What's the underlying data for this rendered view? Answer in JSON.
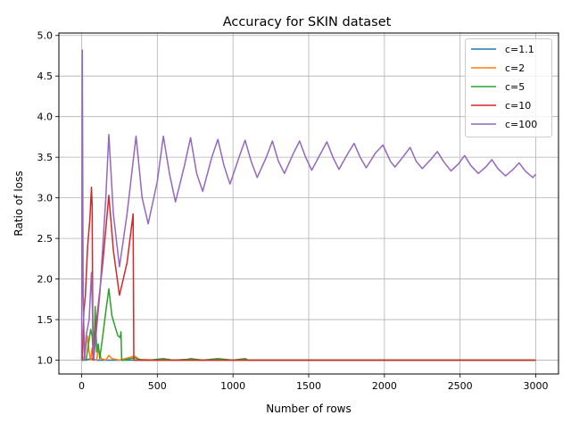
{
  "chart_data": {
    "type": "line",
    "title": "Accuracy for SKIN dataset",
    "xlabel": "Number of rows",
    "ylabel": "Ratio of loss",
    "xlim": [
      -150,
      3150
    ],
    "ylim": [
      0.83,
      5.03
    ],
    "xticks": [
      0,
      500,
      1000,
      1500,
      2000,
      2500,
      3000
    ],
    "yticks": [
      1.0,
      1.5,
      2.0,
      2.5,
      3.0,
      3.5,
      4.0,
      4.5,
      5.0
    ],
    "xtick_labels": [
      "0",
      "500",
      "1000",
      "1500",
      "2000",
      "2500",
      "3000"
    ],
    "ytick_labels": [
      "1.0",
      "1.5",
      "2.0",
      "2.5",
      "3.0",
      "3.5",
      "4.0",
      "4.5",
      "5.0"
    ],
    "grid": true,
    "legend_position": "top-right",
    "series": [
      {
        "name": "c=1.1",
        "color": "#1f77b4",
        "points": [
          [
            0,
            1.0
          ],
          [
            10,
            1.0
          ],
          [
            20,
            1.01
          ],
          [
            30,
            1.0
          ],
          [
            60,
            1.02
          ],
          [
            100,
            1.0
          ],
          [
            200,
            1.0
          ],
          [
            500,
            1.0
          ],
          [
            1000,
            1.0
          ],
          [
            1500,
            1.0
          ],
          [
            2000,
            1.0
          ],
          [
            2500,
            1.0
          ],
          [
            3000,
            1.0
          ]
        ]
      },
      {
        "name": "c=2",
        "color": "#ff7f0e",
        "points": [
          [
            0,
            1.0
          ],
          [
            20,
            1.05
          ],
          [
            40,
            1.3
          ],
          [
            50,
            1.1
          ],
          [
            60,
            1.0
          ],
          [
            70,
            1.15
          ],
          [
            80,
            1.0
          ],
          [
            100,
            1.0
          ],
          [
            110,
            1.15
          ],
          [
            130,
            1.02
          ],
          [
            160,
            1.0
          ],
          [
            180,
            1.06
          ],
          [
            200,
            1.02
          ],
          [
            250,
            1.0
          ],
          [
            350,
            1.05
          ],
          [
            380,
            1.01
          ],
          [
            500,
            1.0
          ],
          [
            700,
            1.0
          ],
          [
            1000,
            1.0
          ],
          [
            1500,
            1.0
          ],
          [
            2000,
            1.0
          ],
          [
            2500,
            1.0
          ],
          [
            3000,
            1.0
          ]
        ]
      },
      {
        "name": "c=5",
        "color": "#2ca02c",
        "points": [
          [
            0,
            1.0
          ],
          [
            30,
            1.0
          ],
          [
            50,
            1.25
          ],
          [
            60,
            1.38
          ],
          [
            70,
            1.3
          ],
          [
            80,
            1.05
          ],
          [
            90,
            1.66
          ],
          [
            100,
            1.1
          ],
          [
            110,
            1.2
          ],
          [
            120,
            1.02
          ],
          [
            140,
            1.3
          ],
          [
            160,
            1.6
          ],
          [
            180,
            1.88
          ],
          [
            200,
            1.55
          ],
          [
            220,
            1.42
          ],
          [
            240,
            1.3
          ],
          [
            255,
            1.28
          ],
          [
            260,
            1.35
          ],
          [
            265,
            1.0
          ],
          [
            280,
            1.0
          ],
          [
            300,
            1.01
          ],
          [
            350,
            1.03
          ],
          [
            400,
            1.0
          ],
          [
            450,
            1.0
          ],
          [
            540,
            1.02
          ],
          [
            600,
            1.0
          ],
          [
            700,
            1.01
          ],
          [
            720,
            1.02
          ],
          [
            800,
            1.0
          ],
          [
            900,
            1.02
          ],
          [
            1000,
            1.0
          ],
          [
            1080,
            1.02
          ],
          [
            1100,
            1.0
          ],
          [
            1500,
            1.0
          ],
          [
            2000,
            1.0
          ],
          [
            2500,
            1.0
          ],
          [
            3000,
            1.0
          ]
        ]
      },
      {
        "name": "c=10",
        "color": "#d62728",
        "points": [
          [
            0,
            1.0
          ],
          [
            5,
            1.01
          ],
          [
            15,
            1.6
          ],
          [
            25,
            1.8
          ],
          [
            40,
            2.4
          ],
          [
            55,
            2.75
          ],
          [
            65,
            3.13
          ],
          [
            70,
            2.9
          ],
          [
            75,
            1.0
          ],
          [
            80,
            1.05
          ],
          [
            100,
            1.5
          ],
          [
            140,
            2.2
          ],
          [
            180,
            3.03
          ],
          [
            210,
            2.35
          ],
          [
            250,
            1.8
          ],
          [
            300,
            2.2
          ],
          [
            340,
            2.8
          ],
          [
            345,
            1.0
          ],
          [
            400,
            1.0
          ],
          [
            500,
            1.0
          ],
          [
            1000,
            1.0
          ],
          [
            1500,
            1.0
          ],
          [
            2000,
            1.0
          ],
          [
            2500,
            1.0
          ],
          [
            3000,
            1.0
          ]
        ]
      },
      {
        "name": "c=100",
        "color": "#9467bd",
        "points": [
          [
            0,
            1.0
          ],
          [
            5,
            4.82
          ],
          [
            10,
            1.8
          ],
          [
            20,
            1.0
          ],
          [
            30,
            1.3
          ],
          [
            50,
            1.5
          ],
          [
            65,
            2.08
          ],
          [
            80,
            1.0
          ],
          [
            90,
            1.2
          ],
          [
            120,
            1.8
          ],
          [
            160,
            3.0
          ],
          [
            180,
            3.78
          ],
          [
            210,
            2.8
          ],
          [
            250,
            2.15
          ],
          [
            300,
            2.8
          ],
          [
            360,
            3.76
          ],
          [
            400,
            3.0
          ],
          [
            440,
            2.68
          ],
          [
            500,
            3.2
          ],
          [
            540,
            3.76
          ],
          [
            580,
            3.3
          ],
          [
            620,
            2.95
          ],
          [
            680,
            3.4
          ],
          [
            720,
            3.74
          ],
          [
            760,
            3.3
          ],
          [
            800,
            3.08
          ],
          [
            860,
            3.5
          ],
          [
            900,
            3.72
          ],
          [
            940,
            3.4
          ],
          [
            980,
            3.17
          ],
          [
            1040,
            3.5
          ],
          [
            1080,
            3.71
          ],
          [
            1120,
            3.45
          ],
          [
            1160,
            3.25
          ],
          [
            1220,
            3.5
          ],
          [
            1260,
            3.7
          ],
          [
            1300,
            3.45
          ],
          [
            1340,
            3.3
          ],
          [
            1400,
            3.55
          ],
          [
            1440,
            3.7
          ],
          [
            1480,
            3.5
          ],
          [
            1520,
            3.34
          ],
          [
            1580,
            3.55
          ],
          [
            1620,
            3.69
          ],
          [
            1660,
            3.5
          ],
          [
            1700,
            3.35
          ],
          [
            1760,
            3.55
          ],
          [
            1800,
            3.67
          ],
          [
            1840,
            3.5
          ],
          [
            1880,
            3.37
          ],
          [
            1940,
            3.55
          ],
          [
            1990,
            3.65
          ],
          [
            2040,
            3.45
          ],
          [
            2070,
            3.38
          ],
          [
            2130,
            3.52
          ],
          [
            2170,
            3.62
          ],
          [
            2210,
            3.45
          ],
          [
            2250,
            3.36
          ],
          [
            2310,
            3.48
          ],
          [
            2350,
            3.57
          ],
          [
            2390,
            3.45
          ],
          [
            2440,
            3.33
          ],
          [
            2490,
            3.42
          ],
          [
            2530,
            3.52
          ],
          [
            2570,
            3.4
          ],
          [
            2620,
            3.3
          ],
          [
            2670,
            3.38
          ],
          [
            2710,
            3.47
          ],
          [
            2750,
            3.36
          ],
          [
            2800,
            3.27
          ],
          [
            2850,
            3.35
          ],
          [
            2890,
            3.43
          ],
          [
            2930,
            3.33
          ],
          [
            2980,
            3.25
          ],
          [
            3000,
            3.29
          ]
        ]
      }
    ]
  }
}
